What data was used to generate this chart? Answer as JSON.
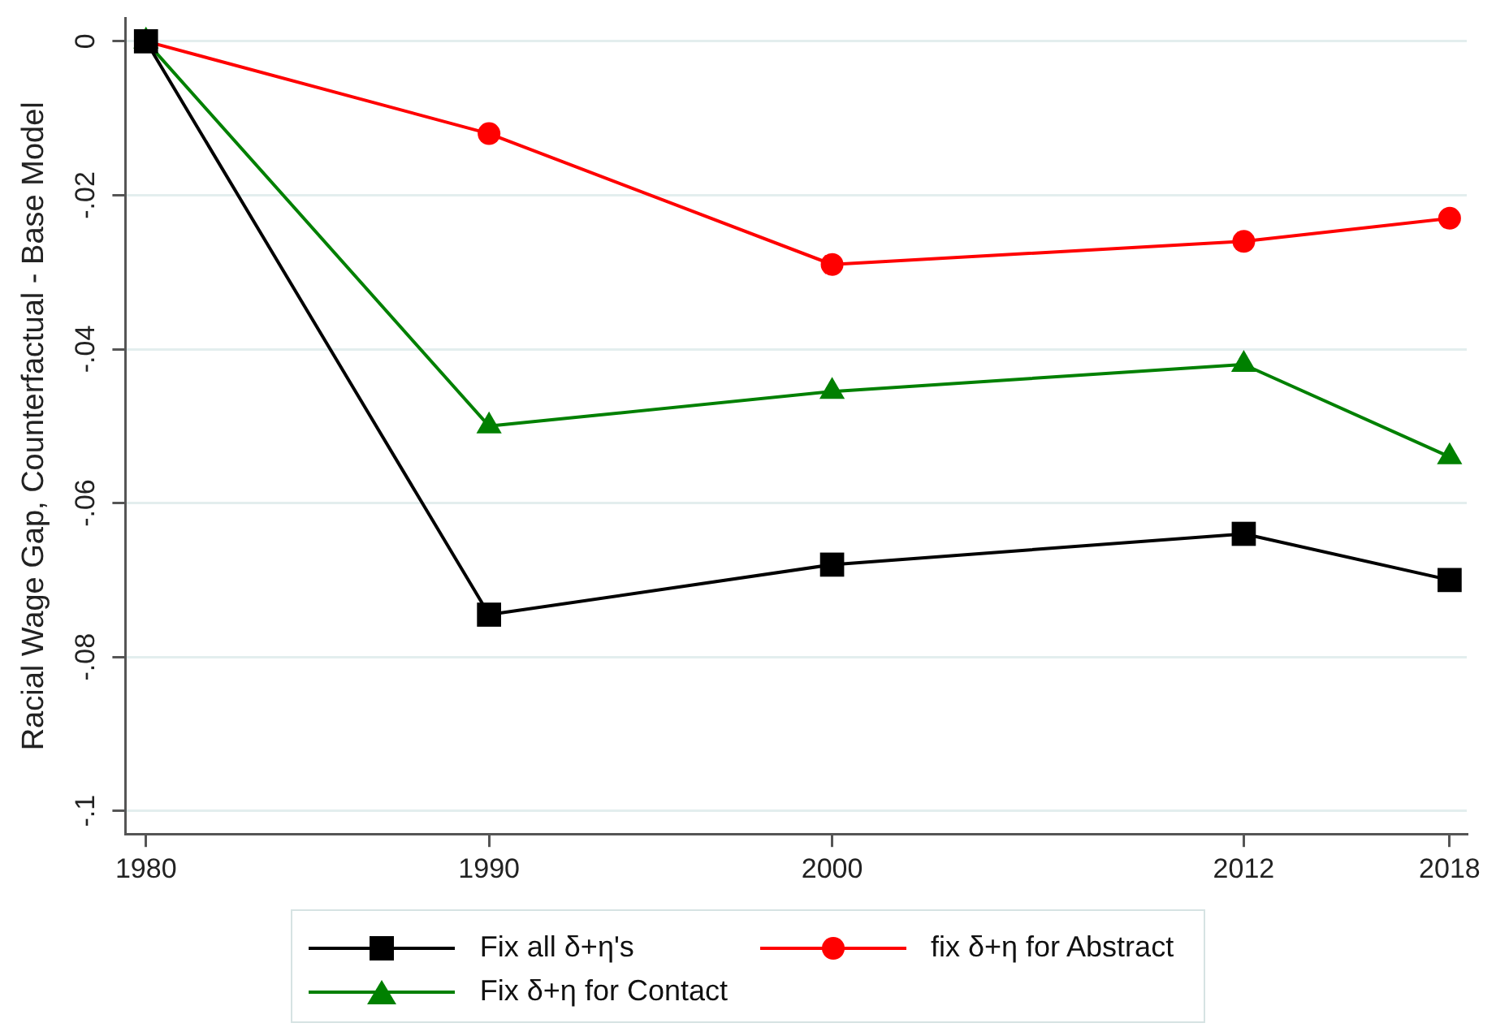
{
  "chart_data": {
    "type": "line",
    "ylabel": "Racial Wage Gap, Counterfactual - Base Model",
    "x": [
      1980,
      1990,
      2000,
      2012,
      2018
    ],
    "xlim": [
      1979.4,
      2018.5
    ],
    "xticks": [
      1980,
      1990,
      2000,
      2012,
      2018
    ],
    "ylim": [
      -0.103,
      0.003
    ],
    "yticks": [
      0,
      {
        "value": -0.02,
        "label": "-.02"
      },
      {
        "value": -0.04,
        "label": "-.04"
      },
      {
        "value": -0.06,
        "label": "-.06"
      },
      {
        "value": -0.08,
        "label": "-.08"
      },
      {
        "value": -0.1,
        "label": "-.1"
      }
    ],
    "grid": "y",
    "legend": "bottom",
    "series": [
      {
        "name": "Fix all δ+η's",
        "color": "#000000",
        "marker": "square",
        "values": [
          0,
          -0.0745,
          -0.068,
          -0.064,
          -0.07
        ]
      },
      {
        "name": "fix δ+η for Abstract",
        "color": "#ff0000",
        "marker": "circle",
        "values": [
          0,
          -0.012,
          -0.029,
          -0.026,
          -0.023
        ]
      },
      {
        "name": "Fix δ+η for Contact",
        "color": "#008000",
        "marker": "triangle",
        "values": [
          0,
          -0.05,
          -0.0455,
          -0.042,
          -0.054
        ]
      }
    ]
  }
}
